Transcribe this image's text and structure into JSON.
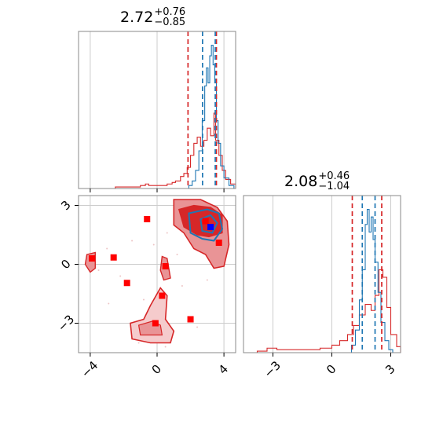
{
  "titles": [
    {
      "value": "2.72",
      "plus": "+0.76",
      "minus": "−0.85"
    },
    {
      "value": "2.08",
      "plus": "+0.46",
      "minus": "−1.04"
    }
  ],
  "colors": {
    "red": "#d62728",
    "blue": "#1f77b4",
    "red_fill": "#e99496",
    "red_fill_light": "#f5cbcc",
    "red_fill_dark": "#d62728",
    "grid": "#cccccc",
    "spine": "#888888",
    "marker_red": "#ff0000",
    "marker_blue": "#0000ff"
  },
  "chart_data": [
    {
      "type": "histogram",
      "panel": "top-left",
      "xlim": [
        -4.7,
        4.7
      ],
      "grid": true,
      "vlines_red": [
        1.85,
        3.55
      ],
      "vlines_blue": [
        2.72,
        3.48
      ],
      "series": [
        {
          "color": "red",
          "bins": [
            [
              -4.7,
              0
            ],
            [
              -2.5,
              0.01
            ],
            [
              -1.0,
              0.02
            ],
            [
              -0.7,
              0.03
            ],
            [
              -0.5,
              0.02
            ],
            [
              0.3,
              0.02
            ],
            [
              0.6,
              0.03
            ],
            [
              0.9,
              0.04
            ],
            [
              1.1,
              0.05
            ],
            [
              1.4,
              0.08
            ],
            [
              1.6,
              0.1
            ],
            [
              1.8,
              0.14
            ],
            [
              2.0,
              0.22
            ],
            [
              2.2,
              0.3
            ],
            [
              2.4,
              0.34
            ],
            [
              2.6,
              0.28
            ],
            [
              2.8,
              0.32
            ],
            [
              3.0,
              0.4
            ],
            [
              3.2,
              0.35
            ],
            [
              3.4,
              0.5
            ],
            [
              3.5,
              0.32
            ],
            [
              3.7,
              0.22
            ],
            [
              3.9,
              0.12
            ],
            [
              4.1,
              0.06
            ],
            [
              4.4,
              0.03
            ],
            [
              4.7,
              0
            ]
          ]
        },
        {
          "color": "blue",
          "bins": [
            [
              1.6,
              0
            ],
            [
              1.9,
              0.02
            ],
            [
              2.1,
              0.05
            ],
            [
              2.3,
              0.12
            ],
            [
              2.5,
              0.25
            ],
            [
              2.7,
              0.45
            ],
            [
              2.85,
              0.68
            ],
            [
              2.95,
              0.8
            ],
            [
              3.05,
              0.7
            ],
            [
              3.15,
              0.88
            ],
            [
              3.25,
              0.95
            ],
            [
              3.35,
              0.82
            ],
            [
              3.45,
              0.7
            ],
            [
              3.55,
              0.45
            ],
            [
              3.65,
              0.3
            ],
            [
              3.8,
              0.15
            ],
            [
              4.0,
              0.07
            ],
            [
              4.3,
              0.02
            ],
            [
              4.6,
              0
            ]
          ]
        }
      ]
    },
    {
      "type": "scatter-contour",
      "panel": "bottom-left",
      "xlim": [
        -4.7,
        4.7
      ],
      "ylim": [
        -4.5,
        3.5
      ],
      "xticks": [
        "−4",
        "0",
        "4"
      ],
      "yticks": [
        "−3",
        "0",
        "3"
      ],
      "grid": true,
      "points_red": [
        [
          -3.9,
          0.3
        ],
        [
          -2.6,
          0.35
        ],
        [
          -1.8,
          -0.95
        ],
        [
          -0.6,
          2.3
        ],
        [
          -0.1,
          -3.0
        ],
        [
          0.3,
          -1.6
        ],
        [
          0.5,
          -0.1
        ],
        [
          2.0,
          -2.8
        ],
        [
          3.7,
          1.1
        ],
        [
          2.9,
          2.2
        ]
      ],
      "points_blue": [
        [
          3.2,
          1.9
        ]
      ]
    },
    {
      "type": "histogram",
      "panel": "bottom-right",
      "xlim": [
        -4.5,
        3.5
      ],
      "xticks": [
        "−3",
        "0",
        "3"
      ],
      "grid": true,
      "vlines_red": [
        1.04,
        2.54
      ],
      "vlines_blue": [
        1.55,
        2.2
      ],
      "series": [
        {
          "color": "red",
          "bins": [
            [
              -4.5,
              0
            ],
            [
              -3.8,
              0.01
            ],
            [
              -3.3,
              0.03
            ],
            [
              -2.8,
              0.02
            ],
            [
              -2.0,
              0.02
            ],
            [
              -1.3,
              0.02
            ],
            [
              -0.6,
              0.03
            ],
            [
              0.0,
              0.05
            ],
            [
              0.4,
              0.08
            ],
            [
              0.8,
              0.12
            ],
            [
              1.1,
              0.18
            ],
            [
              1.4,
              0.25
            ],
            [
              1.7,
              0.32
            ],
            [
              2.0,
              0.28
            ],
            [
              2.2,
              0.38
            ],
            [
              2.4,
              0.55
            ],
            [
              2.6,
              0.5
            ],
            [
              2.8,
              0.3
            ],
            [
              3.0,
              0.12
            ],
            [
              3.3,
              0.04
            ],
            [
              3.5,
              0
            ]
          ]
        },
        {
          "color": "blue",
          "bins": [
            [
              0.8,
              0
            ],
            [
              1.0,
              0.05
            ],
            [
              1.2,
              0.15
            ],
            [
              1.4,
              0.35
            ],
            [
              1.55,
              0.55
            ],
            [
              1.7,
              0.85
            ],
            [
              1.8,
              0.95
            ],
            [
              1.9,
              0.8
            ],
            [
              2.0,
              0.9
            ],
            [
              2.1,
              0.75
            ],
            [
              2.2,
              0.6
            ],
            [
              2.35,
              0.4
            ],
            [
              2.5,
              0.2
            ],
            [
              2.7,
              0.08
            ],
            [
              2.9,
              0.02
            ],
            [
              3.1,
              0
            ]
          ]
        }
      ]
    }
  ]
}
